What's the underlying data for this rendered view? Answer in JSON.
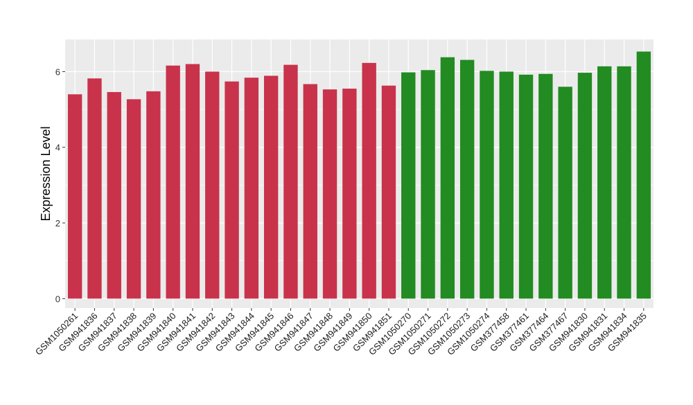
{
  "chart_data": {
    "type": "bar",
    "ylabel": "Expression Level",
    "xlabel": "",
    "ylim": [
      -0.25,
      6.85
    ],
    "yticks": [
      0,
      2,
      4,
      6
    ],
    "grid": true,
    "categories": [
      "GSM1050261",
      "GSM941836",
      "GSM941837",
      "GSM941838",
      "GSM941839",
      "GSM941840",
      "GSM941841",
      "GSM941842",
      "GSM941843",
      "GSM941844",
      "GSM941845",
      "GSM941846",
      "GSM941847",
      "GSM941848",
      "GSM941849",
      "GSM941850",
      "GSM941851",
      "GSM1050270",
      "GSM1050271",
      "GSM1050272",
      "GSM1050273",
      "GSM1050274",
      "GSM377458",
      "GSM377461",
      "GSM377464",
      "GSM377467",
      "GSM941830",
      "GSM941831",
      "GSM941834",
      "GSM941835"
    ],
    "values": [
      5.4,
      5.82,
      5.46,
      5.27,
      5.48,
      6.16,
      6.2,
      6.0,
      5.74,
      5.84,
      5.89,
      6.18,
      5.67,
      5.53,
      5.55,
      6.23,
      5.63,
      5.98,
      6.04,
      6.38,
      6.31,
      6.02,
      6.0,
      5.92,
      5.94,
      5.6,
      5.97,
      6.14,
      6.14,
      6.53
    ],
    "group_sizes": [
      17,
      13
    ],
    "group_colors": [
      "#c8334b",
      "#228b22"
    ],
    "panel_background": "#ebebeb",
    "grid_color": "#ffffff"
  }
}
